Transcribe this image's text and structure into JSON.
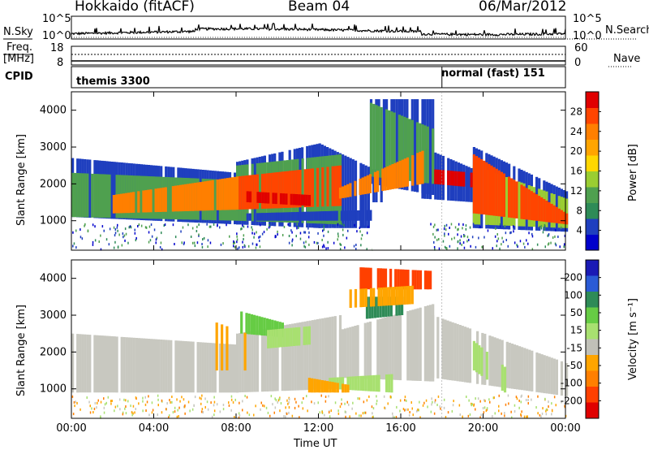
{
  "header": {
    "left_title": "Hokkaido (fitACF)",
    "center_title": "Beam 04",
    "right_title": "06/Mar/2012"
  },
  "strip_labels": {
    "nsky": "N.Sky",
    "freq_line1": "Freq.",
    "freq_line2": "[MHz]",
    "cpid": "CPID",
    "nsearch": "N.Search",
    "nave": "Nave",
    "nsky_tick_top": "10^5",
    "nsky_tick_bottom": "10^0",
    "freq_tick_top": "18",
    "freq_tick_bottom": "8",
    "nave_tick_top": "60",
    "nave_tick_bottom": "0"
  },
  "cpid_segments": [
    {
      "label": "themis 3300",
      "start_hour": 0,
      "end_hour": 18
    },
    {
      "label": "normal (fast) 151",
      "start_hour": 18,
      "end_hour": 24
    }
  ],
  "colors": {
    "power_scale": [
      "#0000cc",
      "#1f3fbf",
      "#2e8b57",
      "#4fa04f",
      "#9acd32",
      "#ffd700",
      "#ffa500",
      "#ff7f00",
      "#ff4500",
      "#e00000"
    ],
    "velocity_scale": [
      "#1a1ab5",
      "#2a5bd6",
      "#2e8b57",
      "#66cc44",
      "#a8e070",
      "#c0c0b8",
      "#ffa500",
      "#ff7f00",
      "#ff4000",
      "#e00000"
    ],
    "ground_scatter": "#c8c8c0"
  },
  "chart_data": [
    {
      "type": "heatmap",
      "title": "",
      "xlabel": "",
      "ylabel": "Slant Range [km]",
      "x_ticks": [
        "00:00",
        "04:00",
        "08:00",
        "12:00",
        "16:00",
        "20:00",
        "00:00"
      ],
      "y_ticks": [
        "1000",
        "2000",
        "3000",
        "4000"
      ],
      "xlim_hours": [
        0,
        24
      ],
      "ylim_km": [
        200,
        4500
      ],
      "colorbar_label": "Power [dB]",
      "colorbar_ticks": [
        "4",
        "8",
        "12",
        "16",
        "20",
        "24",
        "28"
      ],
      "colorbar_range": [
        0,
        32
      ]
    },
    {
      "type": "heatmap",
      "title": "",
      "xlabel": "Time UT",
      "ylabel": "Slant Range [km]",
      "x_ticks": [
        "00:00",
        "04:00",
        "08:00",
        "12:00",
        "16:00",
        "20:00",
        "00:00"
      ],
      "y_ticks": [
        "1000",
        "2000",
        "3000",
        "4000"
      ],
      "xlim_hours": [
        0,
        24
      ],
      "ylim_km": [
        200,
        4500
      ],
      "colorbar_label": "Velocity [m s⁻¹]",
      "colorbar_ticks": [
        "200",
        "100",
        "50",
        "15",
        "-15",
        "-50",
        "-100",
        "-200"
      ],
      "colorbar_range": [
        -250,
        250
      ]
    }
  ]
}
